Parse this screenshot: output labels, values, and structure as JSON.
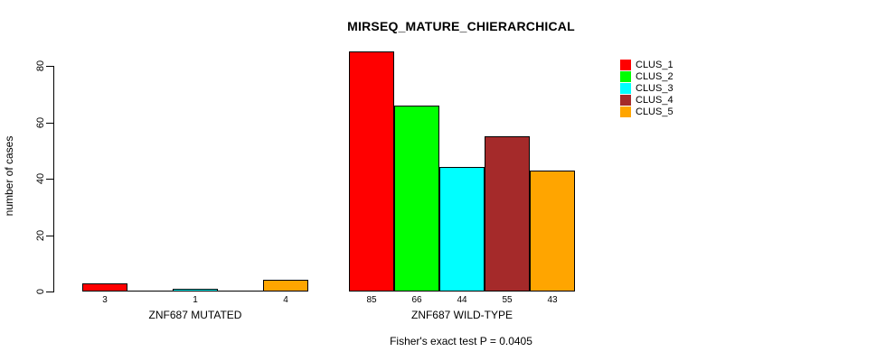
{
  "chart_data": {
    "type": "bar",
    "title": "MIRSEQ_MATURE_CHIERARCHICAL",
    "ylabel": "number of cases",
    "xlabel": "",
    "annotation": "Fisher's exact test P = 0.0405",
    "yticks": [
      0,
      20,
      40,
      60,
      80
    ],
    "ylim": [
      0,
      85
    ],
    "grid": false,
    "legend_position": "right",
    "series": [
      {
        "name": "CLUS_1",
        "color": "#ff0000"
      },
      {
        "name": "CLUS_2",
        "color": "#00ff00"
      },
      {
        "name": "CLUS_3",
        "color": "#00ffff"
      },
      {
        "name": "CLUS_4",
        "color": "#a52a2a"
      },
      {
        "name": "CLUS_5",
        "color": "#ffa500"
      }
    ],
    "groups": [
      {
        "label": "ZNF687 MUTATED",
        "values": [
          3,
          0,
          1,
          0,
          4
        ],
        "value_labels": [
          "3",
          "",
          "1",
          "",
          "4"
        ]
      },
      {
        "label": "ZNF687 WILD-TYPE",
        "values": [
          85,
          66,
          44,
          55,
          43
        ],
        "value_labels": [
          "85",
          "66",
          "44",
          "55",
          "43"
        ]
      }
    ]
  }
}
